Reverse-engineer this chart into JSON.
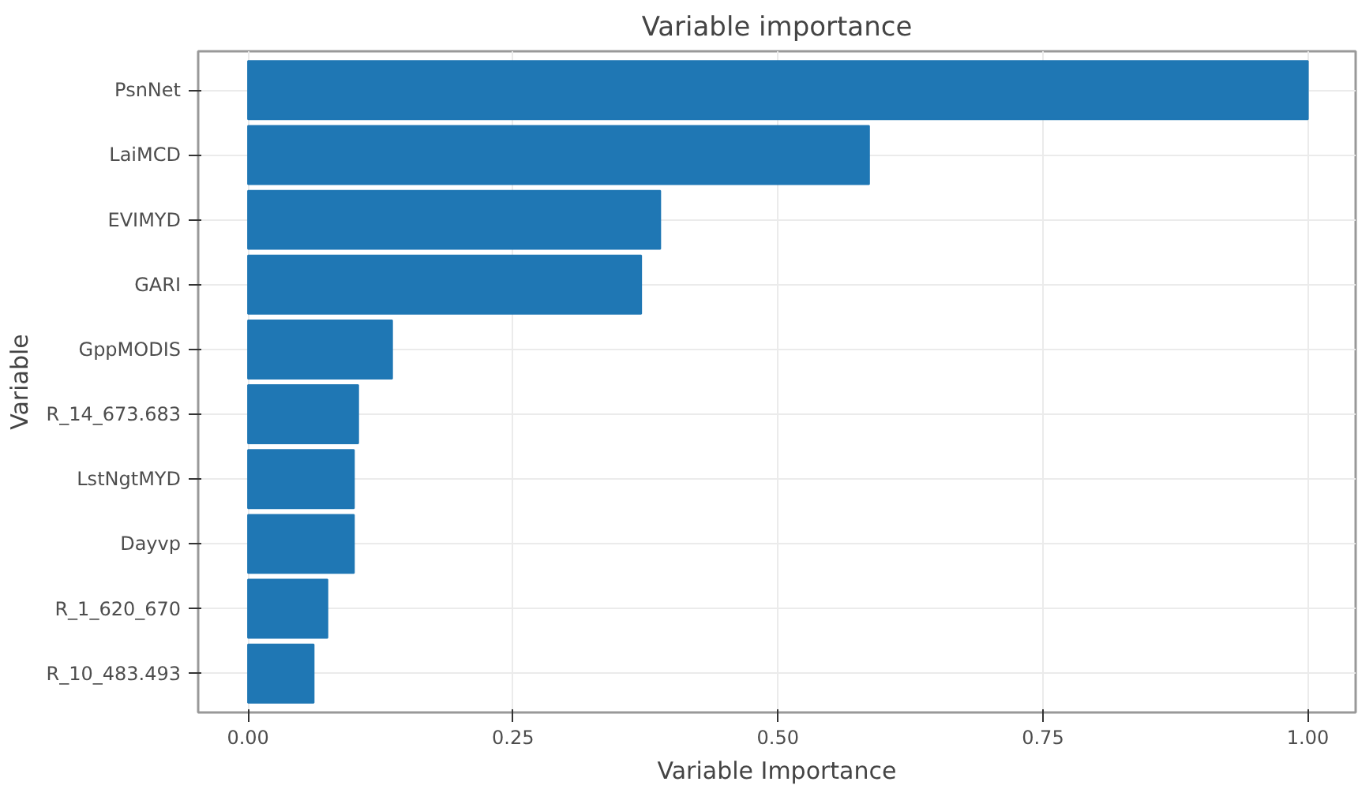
{
  "chart_data": {
    "type": "bar",
    "orientation": "horizontal",
    "title": "Variable importance",
    "xlabel": "Variable Importance",
    "ylabel": "Variable",
    "categories": [
      "PsnNet",
      "LaiMCD",
      "EVIMYD",
      "GARI",
      "GppMODIS",
      "R_14_673.683",
      "LstNgtMYD",
      "Dayvp",
      "R_1_620_670",
      "R_10_483.493"
    ],
    "values": [
      1.0,
      0.586,
      0.389,
      0.371,
      0.136,
      0.104,
      0.1,
      0.1,
      0.075,
      0.062
    ],
    "color": "#1f77b4",
    "xlim": [
      -0.047,
      1.045
    ],
    "xticks": [
      {
        "value": 0,
        "label": "0.00"
      },
      {
        "value": 0.25,
        "label": "0.25"
      },
      {
        "value": 0.5,
        "label": "0.50"
      },
      {
        "value": 0.75,
        "label": "0.75"
      },
      {
        "value": 1,
        "label": "1.00"
      }
    ],
    "grid": true
  }
}
